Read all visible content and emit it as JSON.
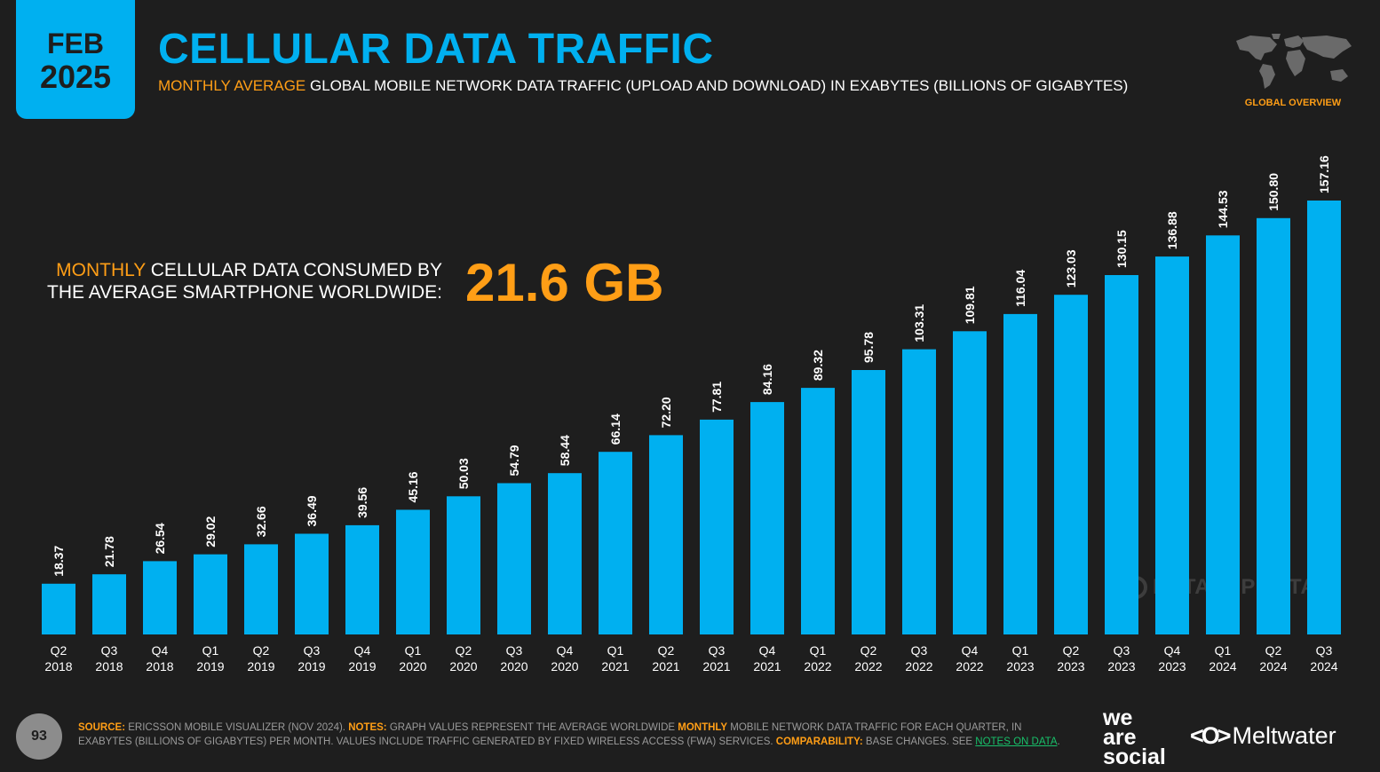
{
  "badge": {
    "month": "FEB",
    "year": "2025"
  },
  "header": {
    "title": "CELLULAR DATA TRAFFIC",
    "subtitle_highlight": "MONTHLY AVERAGE",
    "subtitle_rest": " GLOBAL MOBILE NETWORK DATA TRAFFIC (UPLOAD AND DOWNLOAD) IN EXABYTES (BILLIONS OF GIGABYTES)",
    "section_label": "GLOBAL OVERVIEW"
  },
  "kpi": {
    "text_highlight": "MONTHLY",
    "text_line1_rest": " CELLULAR DATA CONSUMED BY",
    "text_line2": "THE AVERAGE SMARTPHONE WORLDWIDE:",
    "value": "21.6 GB"
  },
  "watermark": "DATAREPORTAL",
  "footer": {
    "page_number": "93",
    "source_label": "SOURCE:",
    "source_text": " ERICSSON MOBILE VISUALIZER (NOV 2024). ",
    "notes_label": "NOTES:",
    "notes_text_a": " GRAPH VALUES REPRESENT THE AVERAGE WORLDWIDE ",
    "notes_highlight": "MONTHLY",
    "notes_text_b": " MOBILE NETWORK DATA TRAFFIC FOR EACH QUARTER, IN EXABYTES (BILLIONS OF GIGABYTES) PER MONTH. VALUES INCLUDE TRAFFIC GENERATED BY FIXED WIRELESS ACCESS (FWA) SERVICES. ",
    "comparability_label": "COMPARABILITY:",
    "comparability_text": " BASE CHANGES. SEE ",
    "link_text": "NOTES ON DATA",
    "link_end": "."
  },
  "logos": {
    "we": "we",
    "are": "are",
    "social": "social",
    "meltwater": "Meltwater"
  },
  "colors": {
    "bar": "#00b0f0",
    "accent": "#ff9e16",
    "background": "#1e1e1e"
  },
  "chart_data": {
    "type": "bar",
    "title": "CELLULAR DATA TRAFFIC",
    "categories": [
      [
        "Q2",
        "2018"
      ],
      [
        "Q3",
        "2018"
      ],
      [
        "Q4",
        "2018"
      ],
      [
        "Q1",
        "2019"
      ],
      [
        "Q2",
        "2019"
      ],
      [
        "Q3",
        "2019"
      ],
      [
        "Q4",
        "2019"
      ],
      [
        "Q1",
        "2020"
      ],
      [
        "Q2",
        "2020"
      ],
      [
        "Q3",
        "2020"
      ],
      [
        "Q4",
        "2020"
      ],
      [
        "Q1",
        "2021"
      ],
      [
        "Q2",
        "2021"
      ],
      [
        "Q3",
        "2021"
      ],
      [
        "Q4",
        "2021"
      ],
      [
        "Q1",
        "2022"
      ],
      [
        "Q2",
        "2022"
      ],
      [
        "Q3",
        "2022"
      ],
      [
        "Q4",
        "2022"
      ],
      [
        "Q1",
        "2023"
      ],
      [
        "Q2",
        "2023"
      ],
      [
        "Q3",
        "2023"
      ],
      [
        "Q4",
        "2023"
      ],
      [
        "Q1",
        "2024"
      ],
      [
        "Q2",
        "2024"
      ],
      [
        "Q3",
        "2024"
      ]
    ],
    "values": [
      18.37,
      21.78,
      26.54,
      29.02,
      32.66,
      36.49,
      39.56,
      45.16,
      50.03,
      54.79,
      58.44,
      66.14,
      72.2,
      77.81,
      84.16,
      89.32,
      95.78,
      103.31,
      109.81,
      116.04,
      123.03,
      130.15,
      136.88,
      144.53,
      150.8,
      157.16
    ],
    "value_labels": [
      "18.37",
      "21.78",
      "26.54",
      "29.02",
      "32.66",
      "36.49",
      "39.56",
      "45.16",
      "50.03",
      "54.79",
      "58.44",
      "66.14",
      "72.20",
      "77.81",
      "84.16",
      "89.32",
      "95.78",
      "103.31",
      "109.81",
      "116.04",
      "123.03",
      "130.15",
      "136.88",
      "144.53",
      "150.80",
      "157.16"
    ],
    "ylim": [
      0,
      157.16
    ],
    "grid": false,
    "legend": "none"
  }
}
